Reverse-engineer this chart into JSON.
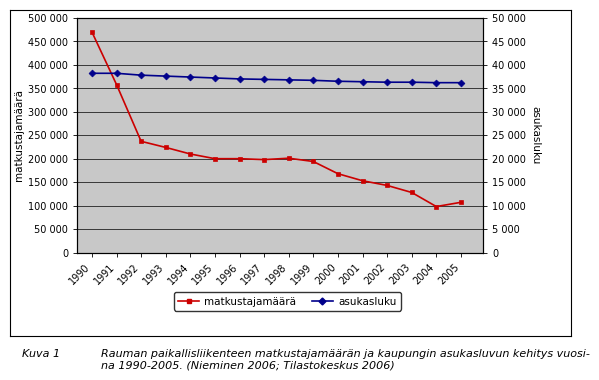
{
  "years": [
    1990,
    1991,
    1992,
    1993,
    1994,
    1995,
    1996,
    1997,
    1998,
    1999,
    2000,
    2001,
    2002,
    2003,
    2004,
    2005
  ],
  "matkustajamaara": [
    470000,
    358000,
    237000,
    224000,
    210000,
    200000,
    200000,
    198000,
    201000,
    194000,
    168000,
    153000,
    143000,
    128000,
    98000,
    107000
  ],
  "asukasluku": [
    38200,
    38200,
    37800,
    37600,
    37400,
    37200,
    37000,
    36900,
    36800,
    36700,
    36500,
    36400,
    36300,
    36300,
    36200,
    36200
  ],
  "left_ylabel": "matkustajamäärä",
  "right_ylabel": "asukasluku",
  "left_ylim": [
    0,
    500000
  ],
  "right_ylim": [
    0,
    50000
  ],
  "left_ytick_vals": [
    0,
    50000,
    100000,
    150000,
    200000,
    250000,
    300000,
    350000,
    400000,
    450000,
    500000
  ],
  "left_ytick_labels": [
    "0",
    "50 000",
    "100 000",
    "150 000",
    "200 000",
    "250 000",
    "300 000",
    "350 000",
    "400 000",
    "450 000",
    "500 000"
  ],
  "right_ytick_vals": [
    0,
    5000,
    10000,
    15000,
    20000,
    25000,
    30000,
    35000,
    40000,
    45000,
    50000
  ],
  "right_ytick_labels": [
    "0",
    "5 000",
    "10 000",
    "15 000",
    "20 000",
    "25 000",
    "30 000",
    "35 000",
    "40 000",
    "45 000",
    "50 000"
  ],
  "matkustaja_color": "#cc0000",
  "asukasluku_color": "#00008b",
  "plot_bg_color": "#c8c8c8",
  "legend_label_matkustaja": "matkustajamäärä",
  "legend_label_asukasluku": "asukasluku",
  "caption_kuva": "Kuva 1",
  "caption_text": "Rauman paikallisliikenteen matkustajamäärän ja kaupungin asukasluvun kehitys vuosi-\nna 1990-2005. (Nieminen 2006; Tilastokeskus 2006)"
}
